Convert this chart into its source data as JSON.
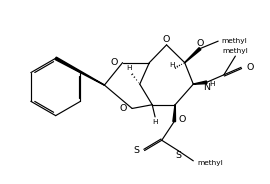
{
  "bg": "#ffffff",
  "lc": "#000000",
  "lw": 0.85,
  "fs": 5.8,
  "figsize": [
    2.7,
    1.84
  ],
  "dpi": 100,
  "xlim": [
    0.0,
    10.8
  ],
  "ylim": [
    -0.5,
    7.2
  ]
}
